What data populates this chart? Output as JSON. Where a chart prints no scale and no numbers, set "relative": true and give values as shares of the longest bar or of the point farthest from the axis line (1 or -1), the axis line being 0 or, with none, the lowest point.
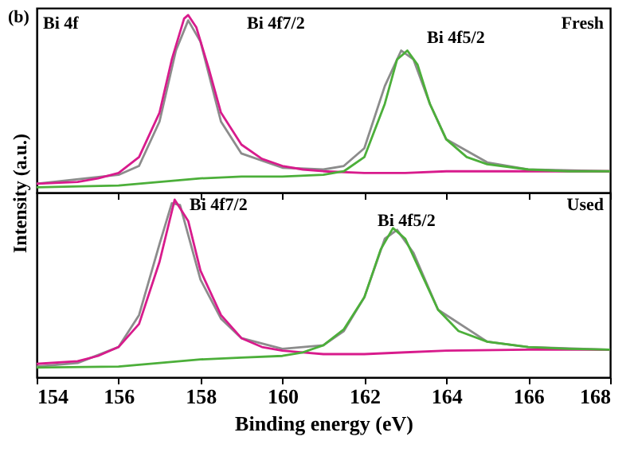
{
  "chart_data": [
    {
      "type": "line",
      "relative": true,
      "ylabel": "Intensity (a.u.)",
      "xlim": [
        154,
        168
      ],
      "xticks": [
        154,
        156,
        158,
        160,
        162,
        164,
        166,
        168
      ],
      "tick_labels": false,
      "annotations": [
        "(b)",
        "Bi 4f",
        "Bi 4f7/2",
        "Bi 4f5/2",
        "Fresh"
      ],
      "series": [
        {
          "color": "#8c8c8c",
          "x": [
            154,
            156,
            156.5,
            157,
            157.4,
            157.7,
            158,
            158.5,
            159,
            160,
            161,
            161.5,
            162,
            162.5,
            162.9,
            163.2,
            163.6,
            164,
            165,
            166,
            168
          ],
          "values": [
            0.05,
            0.1,
            0.15,
            0.4,
            0.8,
            0.97,
            0.85,
            0.4,
            0.22,
            0.14,
            0.13,
            0.15,
            0.25,
            0.6,
            0.8,
            0.75,
            0.5,
            0.3,
            0.17,
            0.13,
            0.12
          ]
        },
        {
          "color": "#d81b8c",
          "x": [
            154,
            155,
            155.5,
            156,
            156.5,
            157,
            157.3,
            157.6,
            157.7,
            157.9,
            158.2,
            158.5,
            159,
            159.5,
            160,
            160.5,
            161,
            162,
            163,
            164,
            165,
            166,
            168
          ],
          "values": [
            0.05,
            0.06,
            0.08,
            0.11,
            0.2,
            0.45,
            0.75,
            0.98,
            1.0,
            0.93,
            0.7,
            0.45,
            0.27,
            0.19,
            0.15,
            0.13,
            0.12,
            0.11,
            0.11,
            0.12,
            0.12,
            0.12,
            0.12
          ]
        },
        {
          "color": "#4caf3a",
          "x": [
            154,
            156,
            157,
            158,
            159,
            160,
            161,
            161.5,
            162,
            162.5,
            162.8,
            163.05,
            163.3,
            163.6,
            164,
            164.5,
            165,
            166,
            167,
            168
          ],
          "values": [
            0.03,
            0.04,
            0.06,
            0.08,
            0.09,
            0.09,
            0.1,
            0.12,
            0.2,
            0.5,
            0.75,
            0.8,
            0.72,
            0.5,
            0.3,
            0.2,
            0.16,
            0.13,
            0.12,
            0.12
          ]
        }
      ]
    },
    {
      "type": "line",
      "relative": true,
      "xlabel": "Binding energy (eV)",
      "xlim": [
        154,
        168
      ],
      "xticks": [
        154,
        156,
        158,
        160,
        162,
        164,
        166,
        168
      ],
      "annotations": [
        "Bi 4f7/2",
        "Bi 4f5/2",
        "Used"
      ],
      "series": [
        {
          "color": "#8c8c8c",
          "x": [
            154,
            155,
            156,
            156.5,
            157,
            157.3,
            157.5,
            158,
            158.5,
            159,
            160,
            161,
            161.5,
            162,
            162.5,
            162.8,
            163.2,
            163.8,
            165,
            166,
            168
          ],
          "values": [
            0.06,
            0.08,
            0.17,
            0.35,
            0.75,
            0.98,
            0.97,
            0.55,
            0.33,
            0.22,
            0.16,
            0.18,
            0.26,
            0.45,
            0.78,
            0.83,
            0.7,
            0.38,
            0.2,
            0.17,
            0.155
          ]
        },
        {
          "color": "#d81b8c",
          "x": [
            154,
            155,
            155.5,
            156,
            156.5,
            157,
            157.37,
            157.7,
            158,
            158.5,
            159,
            159.5,
            160,
            160.5,
            161,
            162,
            163,
            164,
            166,
            168
          ],
          "values": [
            0.075,
            0.09,
            0.12,
            0.17,
            0.3,
            0.65,
            1.0,
            0.88,
            0.6,
            0.35,
            0.22,
            0.17,
            0.15,
            0.14,
            0.13,
            0.13,
            0.14,
            0.15,
            0.155,
            0.155
          ]
        },
        {
          "color": "#4caf3a",
          "x": [
            154,
            156,
            157,
            158,
            159,
            160,
            160.5,
            161,
            161.5,
            162,
            162.4,
            162.7,
            163,
            163.4,
            163.8,
            164.3,
            165,
            166,
            167,
            168
          ],
          "values": [
            0.054,
            0.06,
            0.08,
            0.1,
            0.11,
            0.12,
            0.14,
            0.18,
            0.27,
            0.45,
            0.72,
            0.84,
            0.78,
            0.58,
            0.38,
            0.26,
            0.2,
            0.17,
            0.16,
            0.155
          ]
        }
      ]
    }
  ]
}
